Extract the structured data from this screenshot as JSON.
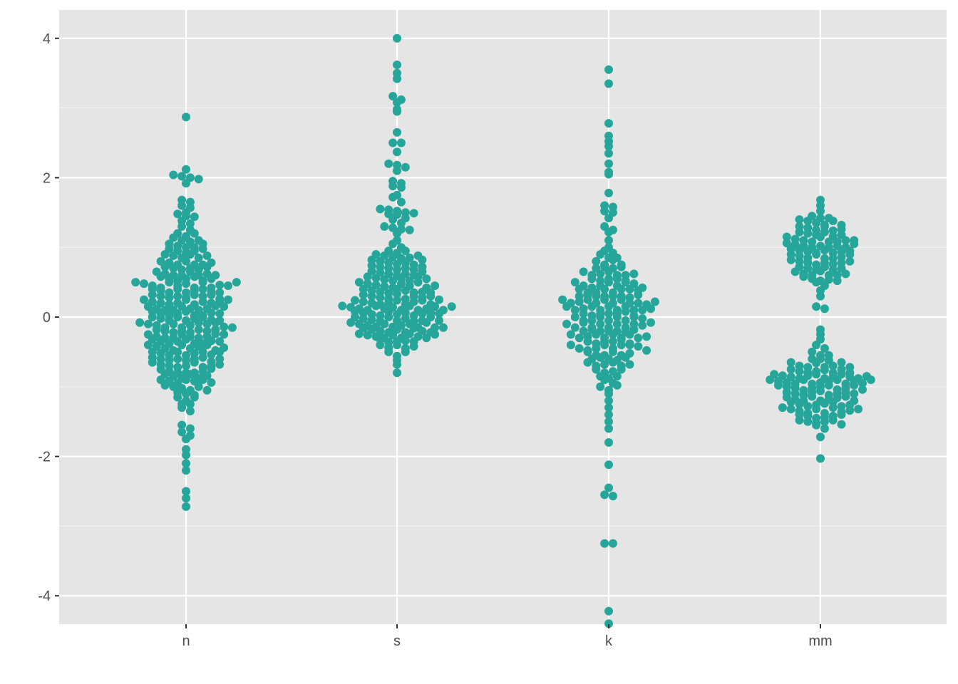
{
  "chart_data": {
    "type": "scatter",
    "subtype": "beeswarm",
    "title": "",
    "xlabel": "",
    "ylabel": "",
    "categories": [
      "n",
      "s",
      "k",
      "mm"
    ],
    "ylim": [
      -4.4,
      4.4
    ],
    "yticks": [
      -4,
      -2,
      0,
      2,
      4
    ],
    "ytick_labels": [
      "-4",
      "-2",
      "0",
      "2",
      "4"
    ],
    "grid": true,
    "legend": "none",
    "colors": {
      "point": "#26a69a",
      "panel": "#e5e5e5",
      "grid": "#ffffff"
    },
    "series": [
      {
        "category": "n",
        "values": [
          2.87,
          2.12,
          2.04,
          2.02,
          2.0,
          1.98,
          1.92,
          1.68,
          1.65,
          1.6,
          1.57,
          1.5,
          1.48,
          1.45,
          1.44,
          1.38,
          1.34,
          1.3,
          1.25,
          1.2,
          1.16,
          1.14,
          1.1,
          1.08,
          1.05,
          1.02,
          1.0,
          0.98,
          0.95,
          0.92,
          0.9,
          0.88,
          0.85,
          0.8,
          0.78,
          0.75,
          0.72,
          0.7,
          0.68,
          0.65,
          0.62,
          0.6,
          0.58,
          0.55,
          0.52,
          0.5,
          0.48,
          0.45,
          0.42,
          0.4,
          0.38,
          0.35,
          0.32,
          0.3,
          0.28,
          0.25,
          0.22,
          0.2,
          0.18,
          0.15,
          0.12,
          0.1,
          0.08,
          0.05,
          0.02,
          0.0,
          -0.02,
          -0.05,
          -0.08,
          -0.1,
          -0.12,
          -0.15,
          -0.18,
          -0.2,
          -0.22,
          -0.25,
          -0.28,
          -0.3,
          -0.32,
          -0.35,
          -0.38,
          -0.4,
          -0.42,
          -0.45,
          -0.48,
          -0.5,
          -0.52,
          -0.55,
          -0.58,
          -0.6,
          -0.62,
          -0.65,
          -0.68,
          -0.7,
          -0.72,
          -0.75,
          -0.78,
          -0.8,
          -0.82,
          -0.85,
          -0.88,
          -0.9,
          -0.92,
          -0.95,
          -0.98,
          -1.0,
          -1.02,
          -1.05,
          -1.08,
          -1.1,
          -1.12,
          -1.15,
          -1.2,
          -1.25,
          -1.3,
          -1.35,
          -1.55,
          -1.6,
          -1.65,
          -1.7,
          -1.75,
          -1.9,
          -1.98,
          -2.1,
          -2.2,
          -2.5,
          -2.6,
          -2.72,
          1.0,
          0.9,
          0.8,
          0.7,
          0.6,
          0.5,
          0.4,
          0.3,
          0.2,
          0.1,
          0.0,
          -0.1,
          -0.2,
          -0.3,
          -0.4,
          -0.5,
          -0.6,
          -0.7,
          -0.8,
          -0.9,
          -1.0,
          0.65,
          0.55,
          0.45,
          0.35,
          0.25,
          0.15,
          0.05,
          -0.05,
          -0.15,
          -0.25,
          -0.35,
          -0.45,
          -0.55,
          -0.65,
          0.95,
          0.85,
          0.75,
          0.68,
          0.58,
          0.48,
          0.38,
          0.28,
          0.18,
          0.08,
          -0.02,
          -0.12,
          -0.22,
          -0.32,
          -0.42,
          -0.52,
          -0.62,
          -0.72,
          -0.82,
          -0.92,
          0.42,
          0.32,
          0.22,
          0.12,
          0.02,
          -0.08,
          -0.18,
          -0.28,
          -0.38,
          1.2,
          1.1,
          -1.15,
          -1.25,
          0.6,
          0.5,
          0.4,
          0.3,
          0.2,
          0.1,
          0.0,
          -0.1,
          -0.2,
          -0.3,
          -0.4,
          -0.5,
          -0.6,
          -0.7,
          -0.8,
          -0.9,
          0.75,
          0.62,
          0.52,
          0.42,
          0.32,
          0.22,
          0.12,
          0.02,
          -0.08,
          -0.18,
          -0.28,
          -0.38,
          -0.48,
          -0.58,
          -0.68,
          -0.78,
          -0.88,
          0.72,
          0.36,
          0.26,
          0.16,
          0.06,
          -0.04,
          -0.14,
          -0.24,
          -0.34,
          -0.44,
          -0.54,
          -0.64,
          -0.74,
          -0.84,
          -0.94,
          1.05,
          0.98,
          0.88,
          0.78,
          0.46,
          -1.05,
          0.55,
          0.45,
          0.35,
          0.25,
          0.15,
          -0.15,
          -0.25,
          -0.35,
          0.05,
          -0.05,
          0.6,
          0.5,
          -0.5,
          -0.6
        ]
      },
      {
        "category": "s",
        "values": [
          4.0,
          3.62,
          3.5,
          3.42,
          3.17,
          3.12,
          3.08,
          2.98,
          2.95,
          2.65,
          2.5,
          2.5,
          2.37,
          2.2,
          2.18,
          2.15,
          2.1,
          1.95,
          1.92,
          1.88,
          1.86,
          1.75,
          1.72,
          1.65,
          1.55,
          1.54,
          1.52,
          1.5,
          1.49,
          1.48,
          1.47,
          1.42,
          1.4,
          1.35,
          1.3,
          1.28,
          1.26,
          1.25,
          1.2,
          1.1,
          1.05,
          1.0,
          0.95,
          0.92,
          0.9,
          0.88,
          0.86,
          0.84,
          0.82,
          0.8,
          0.78,
          0.76,
          0.74,
          0.72,
          0.7,
          0.68,
          0.66,
          0.64,
          0.62,
          0.6,
          0.58,
          0.56,
          0.54,
          0.52,
          0.5,
          0.48,
          0.46,
          0.44,
          0.42,
          0.4,
          0.38,
          0.36,
          0.34,
          0.32,
          0.3,
          0.28,
          0.26,
          0.24,
          0.22,
          0.2,
          0.18,
          0.16,
          0.14,
          0.12,
          0.1,
          0.08,
          0.06,
          0.04,
          0.02,
          0.0,
          -0.02,
          -0.04,
          -0.06,
          -0.08,
          -0.1,
          -0.12,
          -0.14,
          -0.16,
          -0.18,
          -0.2,
          -0.22,
          -0.24,
          -0.26,
          -0.28,
          -0.3,
          -0.32,
          -0.36,
          -0.4,
          -0.44,
          -0.5,
          -0.56,
          -0.62,
          -0.68,
          -0.8,
          0.85,
          0.78,
          0.7,
          0.62,
          0.55,
          0.48,
          0.4,
          0.33,
          0.26,
          0.2,
          0.16,
          0.12,
          0.08,
          0.04,
          0.0,
          -0.05,
          -0.1,
          -0.14,
          -0.18,
          -0.22,
          -0.26,
          -0.3,
          -0.35,
          -0.4,
          0.75,
          0.68,
          0.6,
          0.52,
          0.45,
          0.38,
          0.3,
          0.24,
          0.18,
          0.14,
          0.1,
          0.06,
          0.02,
          -0.02,
          -0.06,
          -0.12,
          -0.16,
          -0.2,
          -0.24,
          -0.28,
          -0.34,
          -0.45,
          0.58,
          0.5,
          0.42,
          0.35,
          0.28,
          0.22,
          0.16,
          0.1,
          0.05,
          -0.05,
          -0.1,
          -0.15,
          -0.22,
          -0.3,
          0.36,
          0.3,
          0.24,
          0.18,
          0.12,
          0.06,
          0.0,
          -0.08,
          -0.15,
          0.15,
          0.1,
          0.95,
          0.88,
          0.82,
          0.72,
          0.65,
          0.55,
          0.45,
          0.35,
          0.25,
          0.15,
          0.05,
          -0.05,
          -0.15,
          -0.25,
          -0.35,
          -0.42,
          -0.5
        ]
      },
      {
        "category": "k",
        "values": [
          3.55,
          3.35,
          2.78,
          2.6,
          2.52,
          2.45,
          2.35,
          2.2,
          2.08,
          2.05,
          1.78,
          1.6,
          1.58,
          1.52,
          1.5,
          1.42,
          1.3,
          1.25,
          1.22,
          1.1,
          1.0,
          0.95,
          0.9,
          0.85,
          0.8,
          0.75,
          0.7,
          0.65,
          0.6,
          0.55,
          0.5,
          0.45,
          0.4,
          0.35,
          0.3,
          0.25,
          0.2,
          0.15,
          0.1,
          0.05,
          0.0,
          -0.05,
          -0.1,
          -0.15,
          -0.2,
          -0.25,
          -0.3,
          -0.35,
          -0.4,
          -0.45,
          -0.5,
          -0.55,
          -0.6,
          -0.65,
          -0.7,
          -0.75,
          -0.8,
          -0.85,
          -0.9,
          -0.95,
          -1.0,
          -1.05,
          -1.1,
          -1.2,
          -1.3,
          -1.4,
          -1.5,
          -1.6,
          -1.8,
          -2.12,
          -2.45,
          -2.55,
          -2.57,
          -3.25,
          -3.25,
          -4.22,
          -4.4,
          0.92,
          0.82,
          0.72,
          0.62,
          0.52,
          0.42,
          0.32,
          0.22,
          0.12,
          0.02,
          -0.08,
          -0.18,
          -0.28,
          -0.38,
          -0.48,
          -0.58,
          -0.68,
          -0.78,
          -0.88,
          -0.98,
          0.85,
          0.75,
          0.65,
          0.55,
          0.45,
          0.35,
          0.25,
          0.15,
          0.05,
          -0.05,
          -0.15,
          -0.25,
          -0.35,
          -0.45,
          -0.55,
          -0.65,
          -0.75,
          -0.85,
          0.7,
          0.6,
          0.5,
          0.4,
          0.3,
          0.2,
          0.1,
          0.0,
          -0.1,
          -0.2,
          -0.3,
          -0.4,
          -0.5,
          -0.6,
          -0.7,
          0.55,
          0.45,
          0.35,
          0.25,
          0.15,
          0.05,
          -0.05,
          -0.15,
          -0.25,
          -0.35,
          -0.45,
          -0.55,
          0.4,
          0.3,
          0.2,
          0.1,
          0.0,
          -0.1,
          -0.2,
          -0.3,
          -0.4,
          0.3,
          0.25,
          0.2,
          0.15,
          0.1,
          0.05,
          -0.05,
          -0.15,
          -0.25,
          0.5,
          0.4,
          0.3,
          0.2,
          0.1,
          0.0,
          -0.1,
          -0.2,
          -0.3,
          -0.4,
          0.6,
          0.48,
          0.38,
          0.28,
          0.18,
          0.08,
          -0.02,
          -0.12,
          -0.22,
          -0.32,
          -0.42,
          -0.52,
          -0.62,
          0.72,
          0.62,
          0.52,
          0.42,
          0.32,
          0.22,
          0.12,
          0.02,
          -0.08,
          -0.18,
          -0.28,
          -0.38,
          -0.48,
          -0.58,
          -0.68
        ]
      },
      {
        "category": "mm",
        "values": [
          1.68,
          1.6,
          1.52,
          1.45,
          1.42,
          1.4,
          1.38,
          1.35,
          1.32,
          1.3,
          1.28,
          1.25,
          1.22,
          1.2,
          1.18,
          1.15,
          1.12,
          1.1,
          1.08,
          1.06,
          1.04,
          1.02,
          1.0,
          0.98,
          0.96,
          0.94,
          0.92,
          0.9,
          0.88,
          0.85,
          0.82,
          0.8,
          0.78,
          0.75,
          0.72,
          0.7,
          0.68,
          0.65,
          0.62,
          0.6,
          0.58,
          0.55,
          0.52,
          0.5,
          0.45,
          0.38,
          0.3,
          0.15,
          0.12,
          -0.18,
          -0.25,
          -0.32,
          -0.4,
          -0.45,
          -0.5,
          -0.55,
          -0.6,
          -0.65,
          -0.7,
          -0.72,
          -0.75,
          -0.78,
          -0.8,
          -0.82,
          -0.84,
          -0.86,
          -0.88,
          -0.9,
          -0.92,
          -0.94,
          -0.96,
          -0.98,
          -1.0,
          -1.02,
          -1.05,
          -1.08,
          -1.1,
          -1.12,
          -1.15,
          -1.18,
          -1.2,
          -1.22,
          -1.25,
          -1.28,
          -1.3,
          -1.32,
          -1.35,
          -1.38,
          -1.4,
          -1.42,
          -1.45,
          -1.48,
          -1.5,
          -1.52,
          -1.55,
          -1.6,
          -1.72,
          -2.03,
          1.38,
          1.3,
          1.22,
          1.15,
          1.08,
          1.02,
          0.96,
          0.9,
          0.84,
          0.78,
          0.72,
          0.66,
          0.6,
          0.54,
          -0.6,
          -0.66,
          -0.72,
          -0.78,
          -0.84,
          -0.9,
          -0.96,
          -1.02,
          -1.08,
          -1.14,
          -1.2,
          -1.26,
          -1.32,
          -1.38,
          -1.44,
          -1.5,
          1.42,
          1.32,
          1.24,
          1.16,
          1.08,
          1.0,
          0.92,
          0.84,
          0.76,
          0.68,
          0.6,
          0.52,
          -0.55,
          -0.62,
          -0.7,
          -0.76,
          -0.82,
          -0.88,
          -0.94,
          -1.0,
          -1.06,
          -1.12,
          -1.18,
          -1.24,
          -1.3,
          -1.36,
          -1.42,
          -1.48,
          -1.54,
          1.26,
          1.18,
          1.1,
          1.02,
          0.94,
          0.86,
          0.78,
          0.7,
          0.62,
          -0.65,
          -0.72,
          -0.8,
          -0.86,
          -0.92,
          -0.98,
          -1.04,
          -1.1,
          -1.16,
          -1.22,
          -1.28,
          -1.34,
          -1.4,
          1.1,
          1.0,
          0.9,
          0.8,
          -0.75,
          -0.82,
          -0.9,
          -0.96,
          -1.02,
          -1.08,
          -1.14,
          -1.2,
          -1.26,
          -1.32,
          1.05,
          0.95,
          -0.8,
          -0.86,
          -0.92,
          -0.98,
          -1.04,
          -1.1,
          -0.88,
          -0.95,
          -0.85,
          -0.9
        ]
      }
    ]
  }
}
